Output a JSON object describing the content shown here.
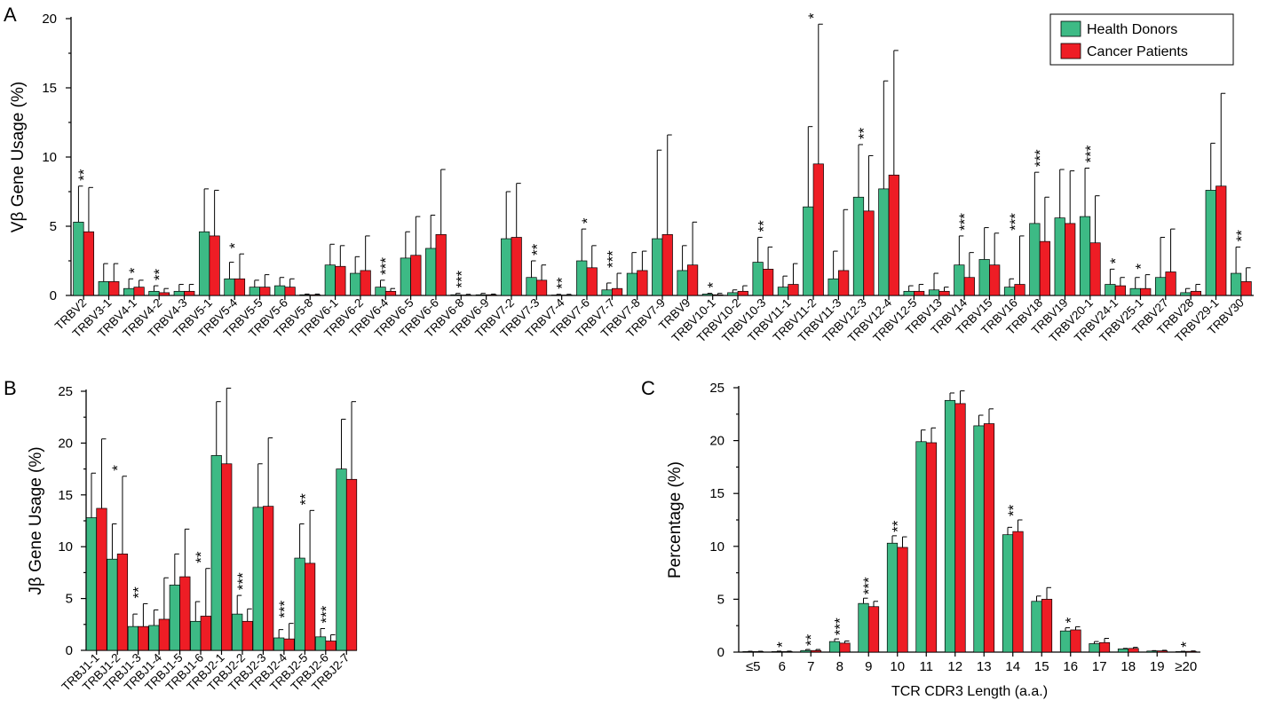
{
  "colors": {
    "health": "#3dba85",
    "cancer": "#ee1d25"
  },
  "legend": [
    "Health Donors",
    "Cancer Patients"
  ],
  "chart_data": [
    {
      "panel": "A",
      "type": "bar",
      "ylabel": "Vβ Gene Usage (%)",
      "ylim": [
        0,
        20
      ],
      "yticks": [
        0,
        5,
        10,
        15,
        20
      ],
      "categories": [
        "TRBV2",
        "TRBV3-1",
        "TRBV4-1",
        "TRBV4-2",
        "TRBV4-3",
        "TRBV5-1",
        "TRBV5-4",
        "TRBV5-5",
        "TRBV5-6",
        "TRBV5-8",
        "TRBV6-1",
        "TRBV6-2",
        "TRBV6-4",
        "TRBV6-5",
        "TRBV6-6",
        "TRBV6-8",
        "TRBV6-9",
        "TRBV7-2",
        "TRBV7-3",
        "TRBV7-4",
        "TRBV7-6",
        "TRBV7-7",
        "TRBV7-8",
        "TRBV7-9",
        "TRBV9",
        "TRBV10-1",
        "TRBV10-2",
        "TRBV10-3",
        "TRBV11-1",
        "TRBV11-2",
        "TRBV11-3",
        "TRBV12-3",
        "TRBV12-4",
        "TRBV12-5",
        "TRBV13",
        "TRBV14",
        "TRBV15",
        "TRBV16",
        "TRBV18",
        "TRBV19",
        "TRBV20-1",
        "TRBV24-1",
        "TRBV25-1",
        "TRBV27",
        "TRBV28",
        "TRBV29-1",
        "TRBV30"
      ],
      "series": [
        {
          "name": "Health Donors",
          "values": [
            5.3,
            1.0,
            0.5,
            0.3,
            0.3,
            4.6,
            1.2,
            0.6,
            0.7,
            0.05,
            2.2,
            1.6,
            0.6,
            2.7,
            3.4,
            0.05,
            0.05,
            4.1,
            1.3,
            0.03,
            2.5,
            0.4,
            1.6,
            4.1,
            1.8,
            0.1,
            0.2,
            2.4,
            0.6,
            6.4,
            1.2,
            7.1,
            7.7,
            0.3,
            0.4,
            2.2,
            2.6,
            0.6,
            5.2,
            5.6,
            5.7,
            0.8,
            0.5,
            1.3,
            0.2,
            7.6,
            1.6
          ],
          "errors": [
            2.6,
            1.3,
            0.7,
            0.4,
            0.5,
            3.1,
            1.2,
            0.5,
            0.6,
            0.05,
            1.5,
            1.2,
            0.5,
            1.9,
            2.4,
            0.1,
            0.1,
            3.4,
            1.2,
            0.05,
            2.3,
            0.5,
            1.5,
            6.4,
            1.8,
            0.05,
            0.2,
            1.8,
            0.8,
            5.8,
            2.0,
            3.8,
            7.8,
            0.4,
            1.2,
            2.1,
            2.3,
            0.6,
            3.7,
            3.5,
            3.5,
            1.1,
            0.8,
            2.9,
            0.3,
            3.4,
            1.9
          ]
        },
        {
          "name": "Cancer Patients",
          "values": [
            4.6,
            1.0,
            0.6,
            0.2,
            0.3,
            4.3,
            1.2,
            0.6,
            0.6,
            0.05,
            2.1,
            1.8,
            0.3,
            2.9,
            4.4,
            0.03,
            0.05,
            4.2,
            1.1,
            0.03,
            2.0,
            0.5,
            1.8,
            4.4,
            2.2,
            0.05,
            0.3,
            1.9,
            0.8,
            9.5,
            1.8,
            6.1,
            8.7,
            0.3,
            0.3,
            1.3,
            2.2,
            0.8,
            3.9,
            5.2,
            3.8,
            0.7,
            0.5,
            1.7,
            0.3,
            7.9,
            1.0
          ],
          "errors": [
            3.2,
            1.3,
            0.5,
            0.3,
            0.5,
            3.3,
            1.8,
            0.9,
            0.6,
            0.05,
            1.5,
            2.5,
            0.2,
            2.8,
            4.7,
            0.05,
            0.05,
            3.9,
            1.1,
            0.05,
            1.6,
            1.1,
            1.4,
            7.2,
            3.1,
            0.1,
            0.4,
            1.6,
            1.5,
            10.1,
            4.4,
            4.0,
            9.0,
            0.5,
            0.3,
            1.8,
            2.3,
            3.5,
            3.2,
            3.8,
            3.4,
            0.6,
            1.0,
            3.1,
            0.5,
            6.7,
            1.0
          ]
        }
      ],
      "significance": [
        [
          "TRBV2",
          "**"
        ],
        [
          "TRBV4-1",
          "*"
        ],
        [
          "TRBV4-2",
          "**"
        ],
        [
          "TRBV5-4",
          "*"
        ],
        [
          "TRBV6-4",
          "***"
        ],
        [
          "TRBV6-8",
          "***"
        ],
        [
          "TRBV7-3",
          "**"
        ],
        [
          "TRBV7-4",
          "**"
        ],
        [
          "TRBV7-6",
          "*"
        ],
        [
          "TRBV7-7",
          "***"
        ],
        [
          "TRBV10-1",
          "*"
        ],
        [
          "TRBV10-3",
          "**"
        ],
        [
          "TRBV11-2",
          "*"
        ],
        [
          "TRBV12-3",
          "**"
        ],
        [
          "TRBV14",
          "***"
        ],
        [
          "TRBV16",
          "***"
        ],
        [
          "TRBV18",
          "***"
        ],
        [
          "TRBV20-1",
          "***"
        ],
        [
          "TRBV24-1",
          "*"
        ],
        [
          "TRBV25-1",
          "*"
        ],
        [
          "TRBV30",
          "**"
        ]
      ]
    },
    {
      "panel": "B",
      "type": "bar",
      "ylabel": "Jβ Gene Usage (%)",
      "ylim": [
        0,
        25
      ],
      "yticks": [
        0,
        5,
        10,
        15,
        20,
        25
      ],
      "categories": [
        "TRBJ1-1",
        "TRBJ1-2",
        "TRBJ1-3",
        "TRBJ1-4",
        "TRBJ1-5",
        "TRBJ1-6",
        "TRBJ2-1",
        "TRBJ2-2",
        "TRBJ2-3",
        "TRBJ2-4",
        "TRBJ2-5",
        "TRBJ2-6",
        "TRBJ2-7"
      ],
      "series": [
        {
          "name": "Health Donors",
          "values": [
            12.8,
            8.8,
            2.3,
            2.4,
            6.3,
            2.8,
            18.8,
            3.5,
            13.8,
            1.2,
            8.9,
            1.3,
            17.5
          ],
          "errors": [
            4.3,
            3.4,
            1.2,
            1.5,
            3.0,
            1.9,
            5.2,
            1.8,
            4.2,
            0.8,
            3.3,
            0.8,
            4.8
          ]
        },
        {
          "name": "Cancer Patients",
          "values": [
            13.7,
            9.3,
            2.3,
            3.0,
            7.1,
            3.3,
            18.0,
            2.8,
            13.9,
            1.1,
            8.4,
            0.9,
            16.5
          ],
          "errors": [
            6.7,
            7.5,
            2.2,
            4.0,
            4.6,
            4.6,
            7.3,
            1.2,
            6.6,
            1.5,
            5.1,
            0.6,
            7.5
          ]
        }
      ],
      "significance": [
        [
          "TRBJ1-2",
          "*"
        ],
        [
          "TRBJ1-3",
          "**"
        ],
        [
          "TRBJ1-6",
          "**"
        ],
        [
          "TRBJ2-2",
          "***"
        ],
        [
          "TRBJ2-4",
          "***"
        ],
        [
          "TRBJ2-5",
          "**"
        ],
        [
          "TRBJ2-6",
          "***"
        ]
      ]
    },
    {
      "panel": "C",
      "type": "bar",
      "ylabel": "Percentage (%)",
      "xlabel": "TCR CDR3 Length (a.a.)",
      "ylim": [
        0,
        25
      ],
      "yticks": [
        0,
        5,
        10,
        15,
        20,
        25
      ],
      "categories": [
        "≤5",
        "6",
        "7",
        "8",
        "9",
        "10",
        "11",
        "12",
        "13",
        "14",
        "15",
        "16",
        "17",
        "18",
        "19",
        "≥20"
      ],
      "series": [
        {
          "name": "Health Donors",
          "values": [
            0.05,
            0.05,
            0.15,
            1.0,
            4.6,
            10.3,
            19.9,
            23.8,
            21.4,
            11.1,
            4.8,
            2.0,
            0.8,
            0.3,
            0.1,
            0.05
          ],
          "errors": [
            0.03,
            0.04,
            0.1,
            0.25,
            0.5,
            0.7,
            1.1,
            0.7,
            1.0,
            0.7,
            0.5,
            0.3,
            0.2,
            0.05,
            0.04,
            0.03
          ]
        },
        {
          "name": "Cancer Patients",
          "values": [
            0.05,
            0.05,
            0.15,
            0.85,
            4.3,
            9.9,
            19.8,
            23.5,
            21.6,
            11.4,
            5.0,
            2.1,
            0.9,
            0.35,
            0.12,
            0.07
          ],
          "errors": [
            0.03,
            0.04,
            0.1,
            0.2,
            0.5,
            1.0,
            1.4,
            1.2,
            1.4,
            1.1,
            1.1,
            0.3,
            0.4,
            0.1,
            0.05,
            0.04
          ]
        }
      ],
      "significance": [
        [
          "6",
          "*"
        ],
        [
          "7",
          "**"
        ],
        [
          "8",
          "***"
        ],
        [
          "9",
          "***"
        ],
        [
          "10",
          "**"
        ],
        [
          "14",
          "**"
        ],
        [
          "16",
          "*"
        ],
        [
          "≥20",
          "*"
        ]
      ]
    }
  ]
}
